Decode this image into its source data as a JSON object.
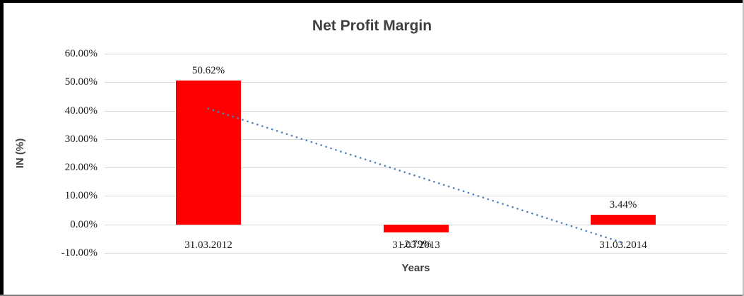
{
  "chart_data": {
    "type": "bar",
    "title": "Net Profit Margin",
    "xlabel": "Years",
    "ylabel": "IN (%)",
    "categories": [
      "31.03.2012",
      "31.03.2013",
      "31.03.2014"
    ],
    "values": [
      50.62,
      -2.79,
      3.44
    ],
    "value_labels": [
      "50.62%",
      "-2.79%",
      "3.44%"
    ],
    "ylim": [
      -10,
      60
    ],
    "ytick_values": [
      60,
      50,
      40,
      30,
      20,
      10,
      0,
      -10
    ],
    "ytick_labels": [
      "60.00%",
      "50.00%",
      "40.00%",
      "30.00%",
      "20.00%",
      "10.00%",
      "0.00%",
      "-10.00%"
    ],
    "grid": true,
    "legend": "none",
    "bar_color": "#FF0000",
    "gridline_color": "#D9D9D9",
    "text_color": "#1A1A1A",
    "title_color": "#3F3F3F",
    "trendline": {
      "type": "linear",
      "style": "dotted",
      "color": "#4F81BD"
    }
  }
}
